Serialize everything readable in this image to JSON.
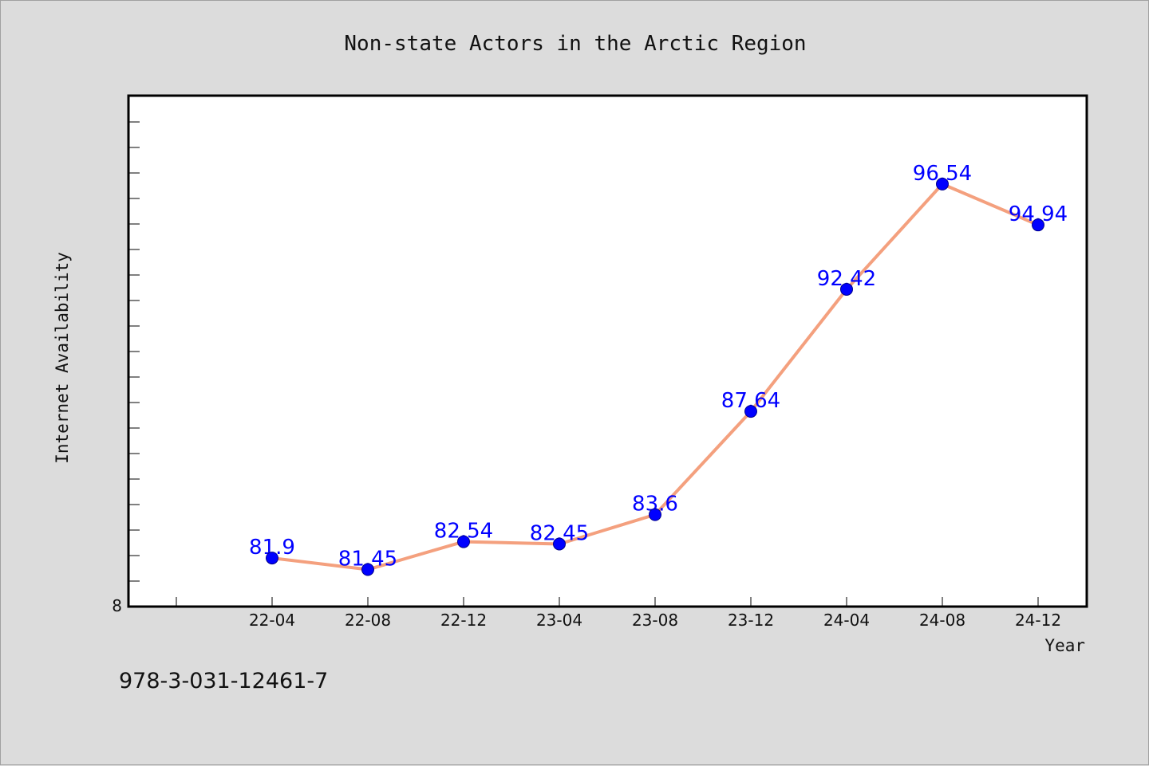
{
  "footer": {
    "code": "978-3-031-12461-7"
  },
  "colors": {
    "background": "#dcdcdc",
    "plot_background": "#ffffff",
    "line": "#f4a07e",
    "marker": "#0000ff",
    "label": "#0000ff"
  },
  "chart_data": {
    "type": "line",
    "title": "Non-state Actors in the Arctic Region",
    "xlabel": "Year",
    "ylabel": "Internet Availability",
    "categories": [
      "22-04",
      "22-08",
      "22-12",
      "23-04",
      "23-08",
      "23-12",
      "24-04",
      "24-08",
      "24-12"
    ],
    "series": [
      {
        "values": [
          81.9,
          81.45,
          82.54,
          82.45,
          83.6,
          87.64,
          92.42,
          96.54,
          94.94
        ]
      }
    ],
    "data_labels": [
      "81.9",
      "81.45",
      "82.54",
      "82.45",
      "83.6",
      "87.64",
      "92.42",
      "96.54",
      "94.94"
    ],
    "y_tick_labels": [
      "8"
    ],
    "ylim": [
      80,
      100
    ],
    "legend": "none",
    "grid": false
  }
}
